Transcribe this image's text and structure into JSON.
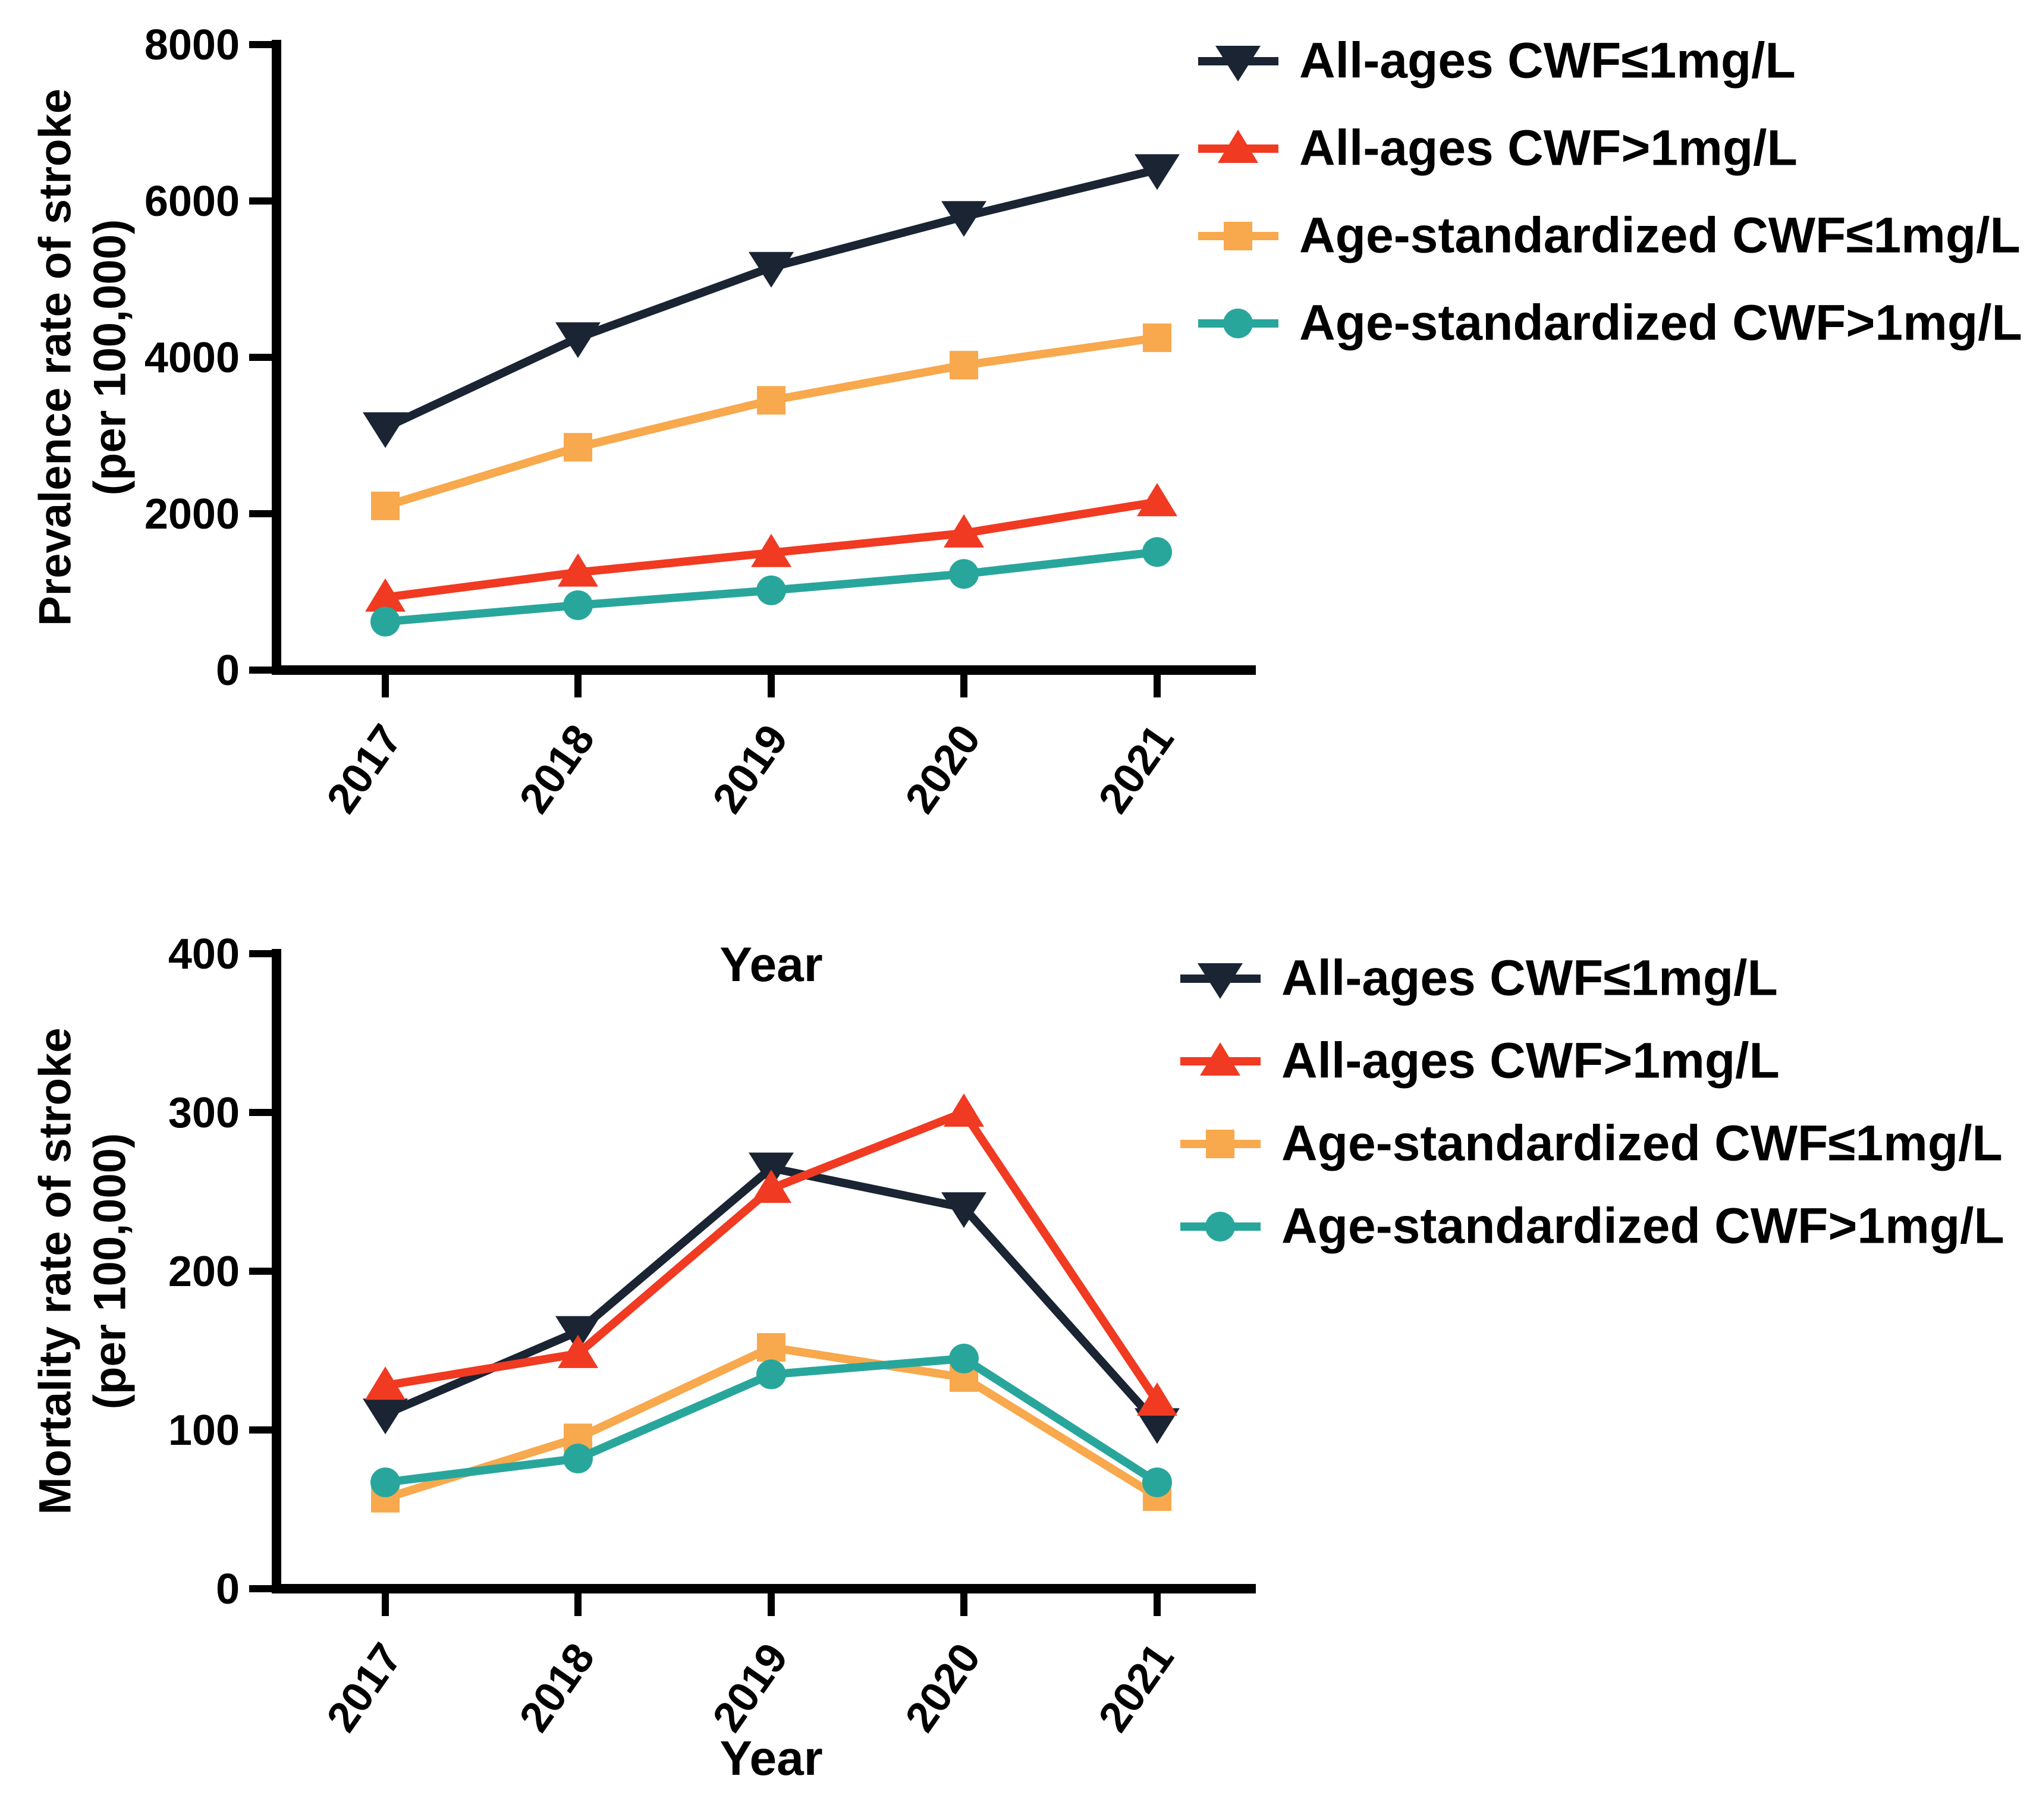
{
  "figure": {
    "background": "#ffffff",
    "description_visible_text_only": true
  },
  "chart_data": [
    {
      "type": "line",
      "title": "",
      "ylabel_lines": [
        "Prevalence rate of stroke",
        "(per 100,000)"
      ],
      "xlabel": "Year",
      "categories": [
        "2017",
        "2018",
        "2019",
        "2020",
        "2021"
      ],
      "ylim": [
        0,
        8000
      ],
      "yticks": [
        0,
        2000,
        4000,
        6000,
        8000
      ],
      "grid": false,
      "legend_position": "right-top",
      "series": [
        {
          "name": "All-ages CWF≤1mg/L",
          "color": "#1a2433",
          "marker": "triangle-down",
          "values": [
            3100,
            4250,
            5150,
            5800,
            6400
          ]
        },
        {
          "name": "All-ages CWF>1mg/L",
          "color": "#f03a22",
          "marker": "triangle-up",
          "values": [
            930,
            1250,
            1500,
            1750,
            2150
          ]
        },
        {
          "name": "Age-standardized CWF≤1mg/L",
          "color": "#f8a84d",
          "marker": "square",
          "values": [
            2100,
            2850,
            3450,
            3900,
            4250
          ]
        },
        {
          "name": "Age-standardized CWF>1mg/L",
          "color": "#29a69c",
          "marker": "circle",
          "values": [
            620,
            830,
            1020,
            1230,
            1510
          ]
        }
      ]
    },
    {
      "type": "line",
      "title": "",
      "ylabel_lines": [
        "Mortality rate of stroke",
        "(per 100,000)"
      ],
      "xlabel": "Year",
      "categories": [
        "2017",
        "2018",
        "2019",
        "2020",
        "2021"
      ],
      "ylim": [
        0,
        400
      ],
      "yticks": [
        0,
        100,
        200,
        300,
        400
      ],
      "grid": false,
      "legend_position": "right-top",
      "series": [
        {
          "name": "All-ages CWF≤1mg/L",
          "color": "#1a2433",
          "marker": "triangle-down",
          "values": [
            110,
            162,
            265,
            240,
            104
          ]
        },
        {
          "name": "All-ages CWF>1mg/L",
          "color": "#f03a22",
          "marker": "triangle-up",
          "values": [
            128,
            148,
            252,
            300,
            118
          ]
        },
        {
          "name": "Age-standardized CWF≤1mg/L",
          "color": "#f8a84d",
          "marker": "square",
          "values": [
            57,
            95,
            152,
            133,
            58
          ]
        },
        {
          "name": "Age-standardized CWF>1mg/L",
          "color": "#29a69c",
          "marker": "circle",
          "values": [
            67,
            82,
            135,
            145,
            67
          ]
        }
      ]
    }
  ]
}
